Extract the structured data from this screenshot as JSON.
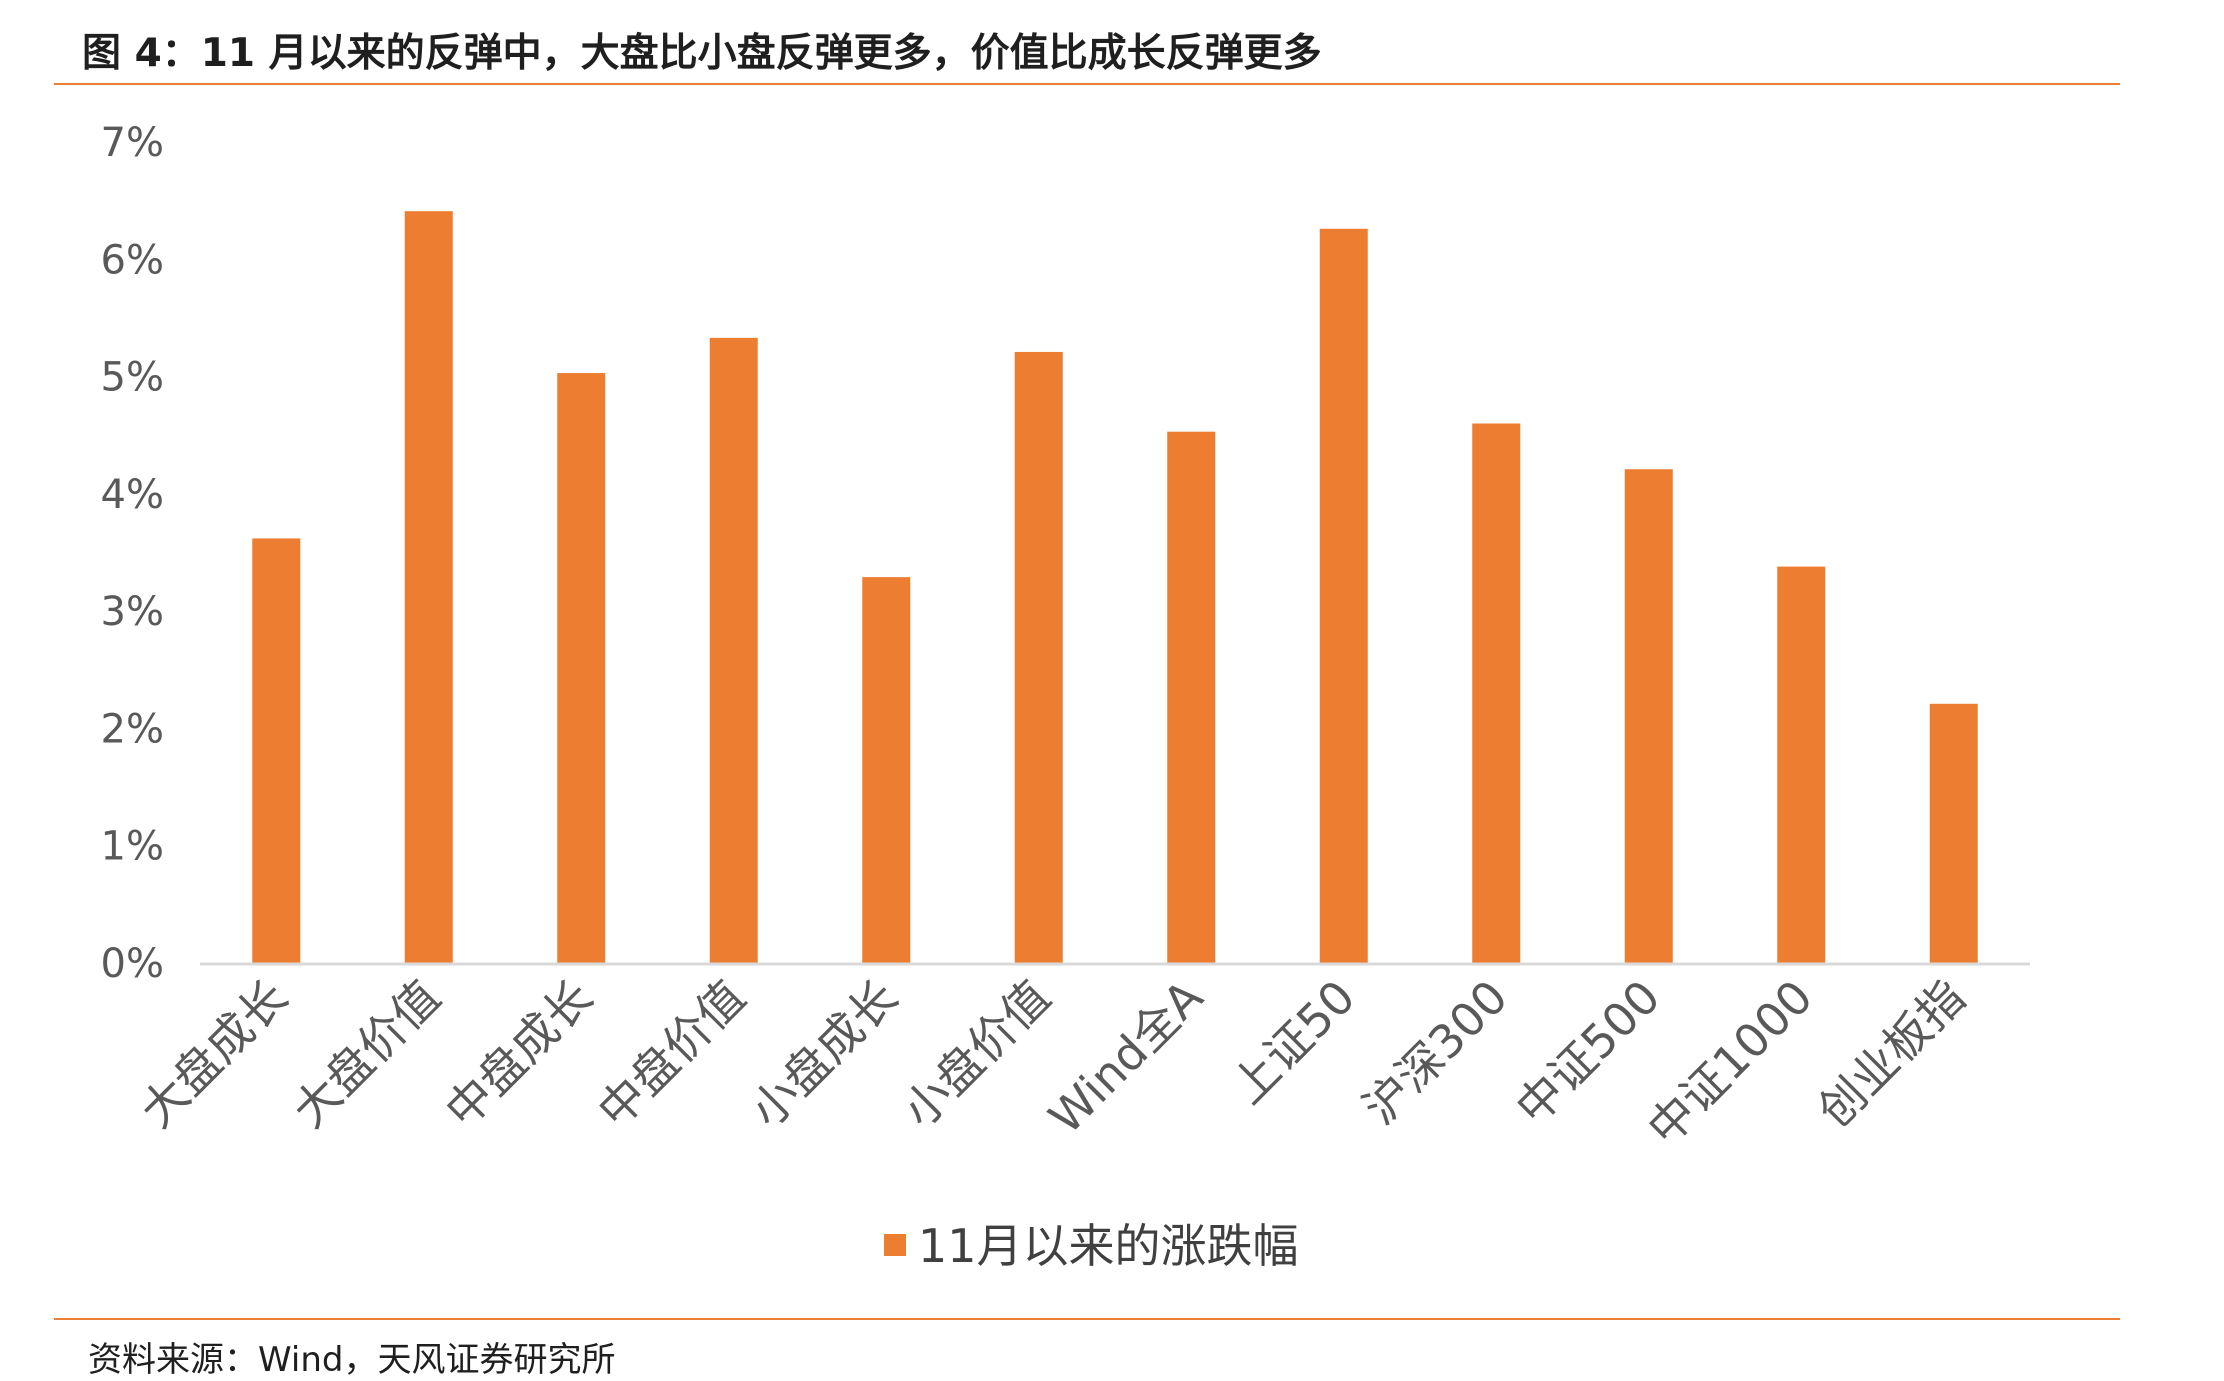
{
  "title": "图 4：11 月以来的反弹中，大盘比小盘反弹更多，价值比成长反弹更多",
  "source": "资料来源：Wind，天风证券研究所",
  "colors": {
    "bar": "#ed7d31",
    "rule": "#ec7f33",
    "axis": "#d9d9d9",
    "text": "#595959"
  },
  "chart_data": {
    "type": "bar",
    "categories": [
      "大盘成长",
      "大盘价值",
      "中盘成长",
      "中盘价值",
      "小盘成长",
      "小盘价值",
      "Wind全A",
      "上证50",
      "沪深300",
      "中证500",
      "中证1000",
      "创业板指"
    ],
    "series": [
      {
        "name": "11月以来的涨跌幅",
        "values": [
          3.62,
          6.41,
          5.03,
          5.33,
          3.29,
          5.21,
          4.53,
          6.26,
          4.6,
          4.21,
          3.38,
          2.21
        ]
      }
    ],
    "yticks": [
      "0%",
      "1%",
      "2%",
      "3%",
      "4%",
      "5%",
      "6%",
      "7%"
    ],
    "ylim": [
      0,
      7
    ],
    "ylabel": "",
    "xlabel": "",
    "grid": false,
    "legend_position": "bottom"
  }
}
